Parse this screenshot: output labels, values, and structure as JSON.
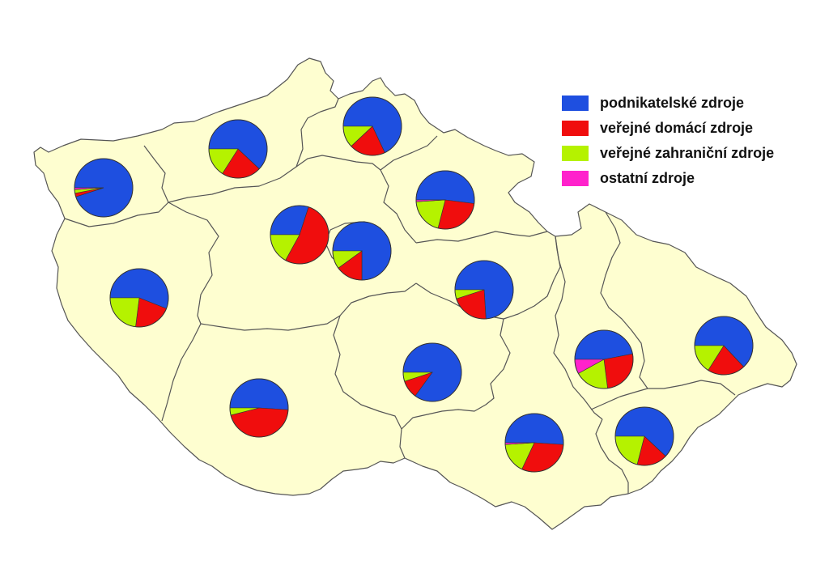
{
  "colors": {
    "business": "#1e4fe0",
    "public_domestic": "#f00d0d",
    "public_foreign": "#b5f200",
    "other": "#ff22cc",
    "land": "#fefed0"
  },
  "legend": [
    {
      "key": "business",
      "label": "podnikatelské zdroje"
    },
    {
      "key": "public_domestic",
      "label": "veřejné domácí zdroje"
    },
    {
      "key": "public_foreign",
      "label": "veřejné zahraniční zdroje"
    },
    {
      "key": "other",
      "label": "ostatní zdroje"
    }
  ],
  "chart_data": {
    "type": "pie",
    "series_order": [
      "business",
      "public_domestic",
      "public_foreign",
      "other"
    ],
    "pies": [
      {
        "region": "karlovarsky",
        "shares": [
          95,
          2,
          2,
          1
        ]
      },
      {
        "region": "ustecky",
        "shares": [
          62,
          22,
          16,
          0
        ]
      },
      {
        "region": "liberecky",
        "shares": [
          68,
          20,
          12,
          0
        ]
      },
      {
        "region": "kralovehradecky",
        "shares": [
          52,
          27,
          20,
          1
        ]
      },
      {
        "region": "stredocesky",
        "shares": [
          30,
          53,
          17,
          0
        ]
      },
      {
        "region": "praha",
        "shares": [
          75,
          15,
          10,
          0
        ]
      },
      {
        "region": "plzensky",
        "shares": [
          56,
          21,
          23,
          0
        ]
      },
      {
        "region": "pardubicky",
        "shares": [
          74,
          21,
          5,
          0
        ]
      },
      {
        "region": "vysocina",
        "shares": [
          85,
          10,
          5,
          0
        ]
      },
      {
        "region": "jihocesky",
        "shares": [
          51,
          45,
          4,
          0
        ]
      },
      {
        "region": "olomoucky",
        "shares": [
          47,
          26,
          19,
          8
        ]
      },
      {
        "region": "moravskoslezsky",
        "shares": [
          63,
          21,
          16,
          0
        ]
      },
      {
        "region": "jihomoravsky",
        "shares": [
          51,
          31,
          17,
          1
        ]
      },
      {
        "region": "zlinsky",
        "shares": [
          62,
          17,
          21,
          0
        ]
      }
    ]
  }
}
